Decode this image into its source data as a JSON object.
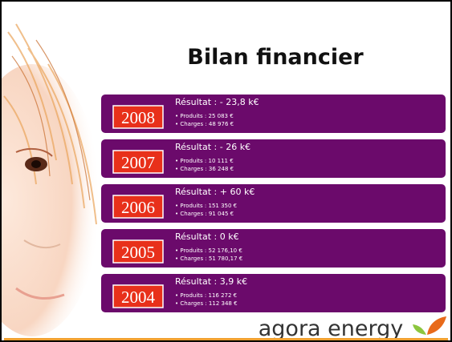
{
  "title": "Bilan financier",
  "rows": [
    {
      "year": "2008",
      "result": "Résultat : - 23,8 k€",
      "produits": "• Produits : 25 083 €",
      "charges": "• Charges : 48 976 €"
    },
    {
      "year": "2007",
      "result": "Résultat : - 26 k€",
      "produits": "• Produits : 10 111 €",
      "charges": "• Charges : 36 248 €"
    },
    {
      "year": "2006",
      "result": "Résultat : + 60 k€",
      "produits": "• Produits : 151 350 €",
      "charges": "• Charges : 91 045 €"
    },
    {
      "year": "2005",
      "result": "Résultat : 0 k€",
      "produits": "• Produits : 52 176,10 €",
      "charges": "• Charges : 51 780,17 €"
    },
    {
      "year": "2004",
      "result": "Résultat : 3,9 k€",
      "produits": "• Produits : 116 272 €",
      "charges": "• Charges : 112 348 €"
    }
  ],
  "logo": "agora energy"
}
